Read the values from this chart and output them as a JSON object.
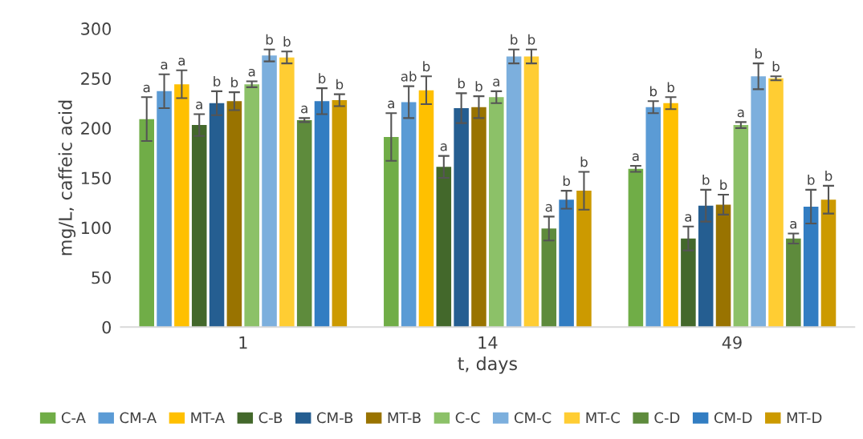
{
  "chart_data": {
    "type": "bar",
    "xlabel": "t, days",
    "ylabel": "mg/L, caffeic acid",
    "categories": [
      "1",
      "14",
      "49"
    ],
    "ylim": [
      0,
      300
    ],
    "yticks": [
      0,
      50,
      100,
      150,
      200,
      250,
      300
    ],
    "grid": false,
    "legend": "bottom",
    "series": [
      {
        "name": "C-A",
        "color": "#70ad47",
        "values": [
          209,
          191,
          159
        ],
        "errors": [
          22,
          24,
          3
        ],
        "value_labels": [
          "a",
          "a",
          "a"
        ]
      },
      {
        "name": "CM-A",
        "color": "#5b9bd5",
        "values": [
          237,
          226,
          221
        ],
        "errors": [
          17,
          16,
          6
        ],
        "value_labels": [
          "a",
          "ab",
          "b"
        ]
      },
      {
        "name": "MT-A",
        "color": "#ffc000",
        "values": [
          244,
          238,
          225
        ],
        "errors": [
          14,
          14,
          6
        ],
        "value_labels": [
          "a",
          "b",
          "b"
        ]
      },
      {
        "name": "C-B",
        "color": "#43682b",
        "values": [
          203,
          161,
          89
        ],
        "errors": [
          11,
          11,
          12
        ],
        "value_labels": [
          "a",
          "a",
          "a"
        ]
      },
      {
        "name": "CM-B",
        "color": "#255e91",
        "values": [
          225,
          220,
          122
        ],
        "errors": [
          12,
          15,
          16
        ],
        "value_labels": [
          "b",
          "b",
          "b"
        ]
      },
      {
        "name": "MT-B",
        "color": "#997300",
        "values": [
          227,
          221,
          123
        ],
        "errors": [
          9,
          11,
          10
        ],
        "value_labels": [
          "b",
          "b",
          "b"
        ]
      },
      {
        "name": "C-C",
        "color": "#8cc168",
        "values": [
          244,
          231,
          203
        ],
        "errors": [
          3,
          6,
          3
        ],
        "value_labels": [
          "a",
          "a",
          "a"
        ]
      },
      {
        "name": "CM-C",
        "color": "#7cafdd",
        "values": [
          273,
          272,
          252
        ],
        "errors": [
          6,
          7,
          13
        ],
        "value_labels": [
          "b",
          "b",
          "b"
        ]
      },
      {
        "name": "MT-C",
        "color": "#ffcd33",
        "values": [
          271,
          272,
          250
        ],
        "errors": [
          6,
          7,
          2
        ],
        "value_labels": [
          "b",
          "b",
          "b"
        ]
      },
      {
        "name": "C-D",
        "color": "#5e8b3c",
        "values": [
          208,
          99,
          89
        ],
        "errors": [
          2,
          12,
          5
        ],
        "value_labels": [
          "a",
          "a",
          "a"
        ]
      },
      {
        "name": "CM-D",
        "color": "#327dc2",
        "values": [
          227,
          128,
          121
        ],
        "errors": [
          13,
          9,
          17
        ],
        "value_labels": [
          "b",
          "b",
          "b"
        ]
      },
      {
        "name": "MT-D",
        "color": "#cc9a00",
        "values": [
          228,
          137,
          128
        ],
        "errors": [
          6,
          19,
          14
        ],
        "value_labels": [
          "b",
          "b",
          "b"
        ]
      }
    ]
  }
}
